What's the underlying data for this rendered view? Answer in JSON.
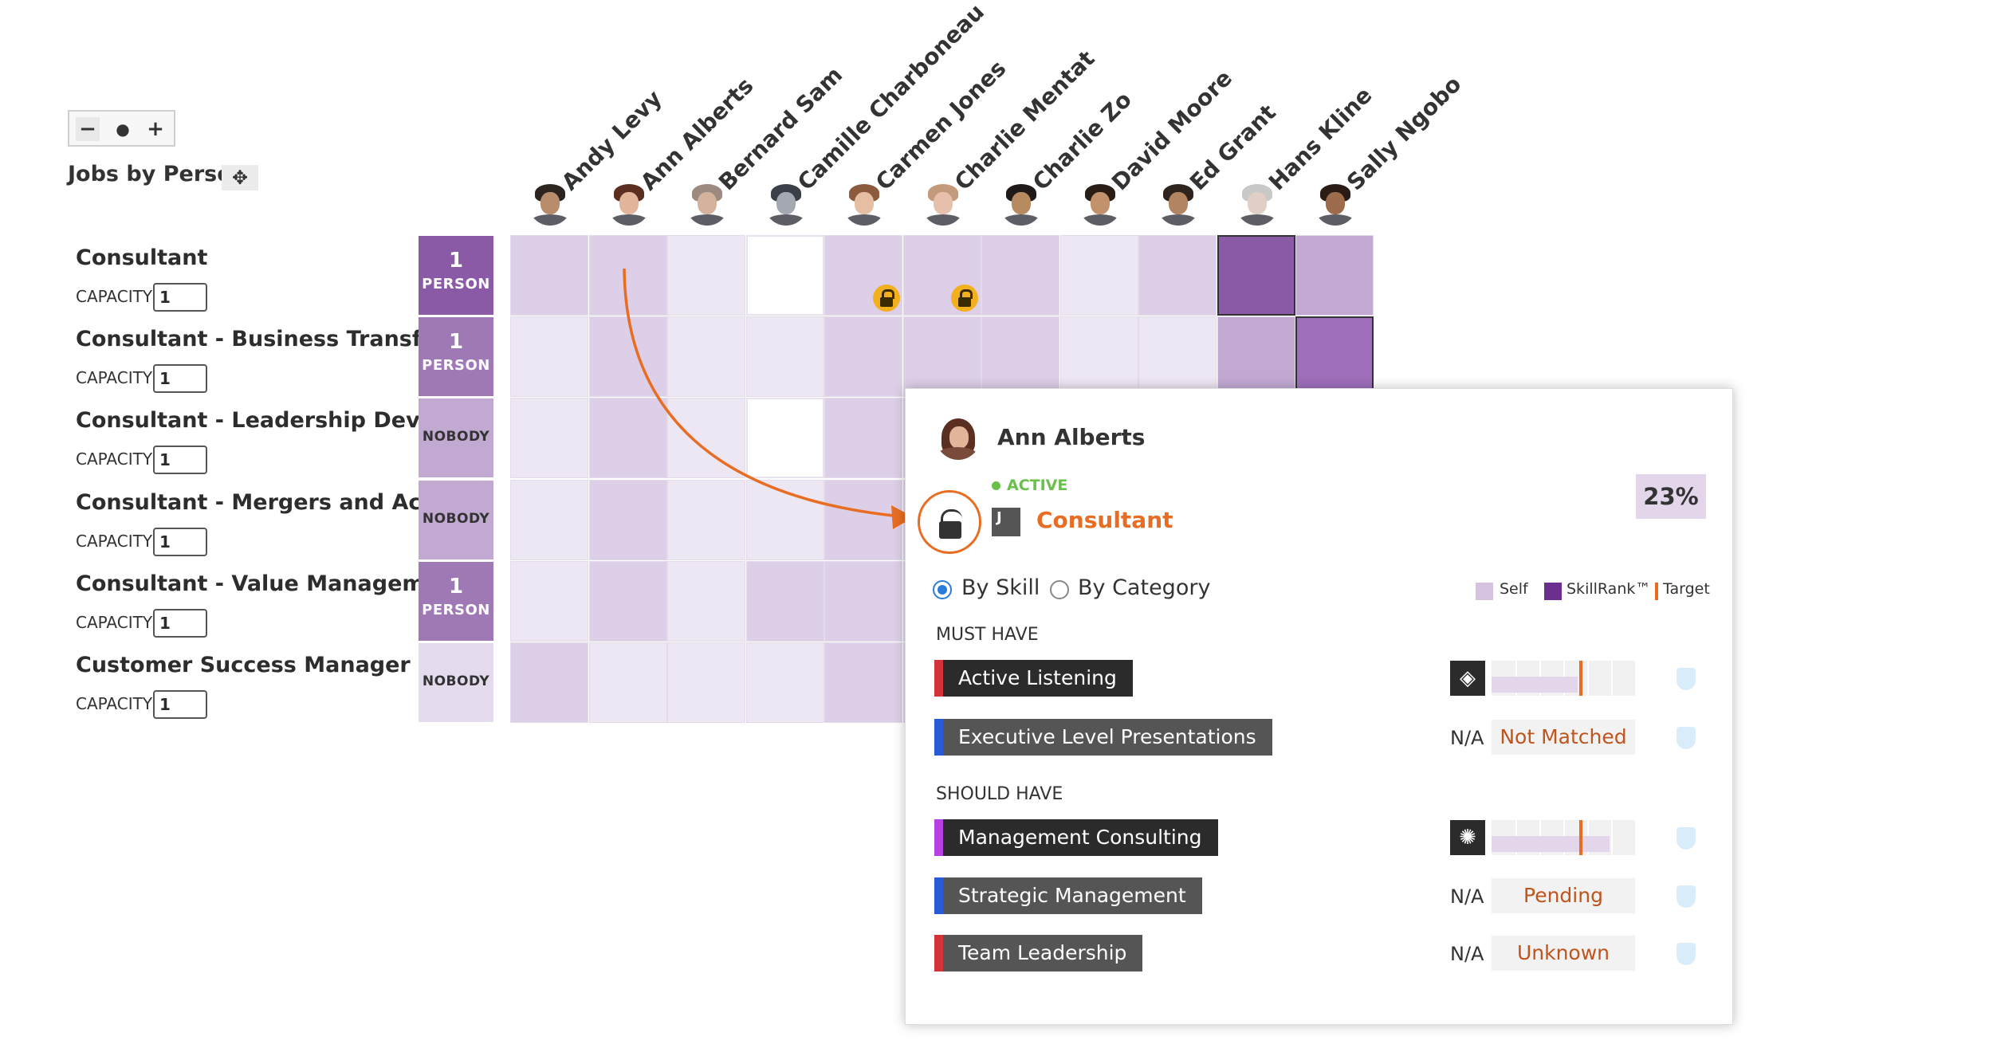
{
  "zoom": {
    "minus": "−",
    "dot": "●",
    "plus": "+"
  },
  "title": "Jobs by Person",
  "move_icon": "✥",
  "people": [
    {
      "name": "Andy Levy",
      "skin": "#b98c6c",
      "hair": "#2d2420"
    },
    {
      "name": "Ann Alberts",
      "skin": "#e2b59a",
      "hair": "#5a2f22"
    },
    {
      "name": "Bernard Sam",
      "skin": "#d4b29c",
      "hair": "#9c8a80"
    },
    {
      "name": "Camille Charboneau",
      "skin": "#a4a8b0",
      "hair": "#3a3f48"
    },
    {
      "name": "Carmen Jones",
      "skin": "#e6bea4",
      "hair": "#8c5a3c"
    },
    {
      "name": "Charlie Mentat",
      "skin": "#e6c0ac",
      "hair": "#c49a7c"
    },
    {
      "name": "Charlie Zo",
      "skin": "#b88a60",
      "hair": "#1f1a17"
    },
    {
      "name": "David Moore",
      "skin": "#c2926c",
      "hair": "#2a1d16"
    },
    {
      "name": "Ed Grant",
      "skin": "#b28462",
      "hair": "#2e241d"
    },
    {
      "name": "Hans Kline",
      "skin": "#e0cfc6",
      "hair": "#c8c8c8"
    },
    {
      "name": "Sally Ngobo",
      "skin": "#9c6c4c",
      "hair": "#2a1c14"
    }
  ],
  "capacity_label": "CAPACITY",
  "jobs": [
    {
      "name": "Consultant",
      "capacity": "1",
      "badge_num": "1",
      "badge_label": "PERSON",
      "badge_color": "#8b5aa6"
    },
    {
      "name": "Consultant - Business Transfor...",
      "capacity": "1",
      "badge_num": "1",
      "badge_label": "PERSON",
      "badge_color": "#9f79b6"
    },
    {
      "name": "Consultant - Leadership Devel...",
      "capacity": "1",
      "badge_num": "",
      "badge_label": "NOBODY",
      "badge_color": "#c2a9d2"
    },
    {
      "name": "Consultant - Mergers and Acqu...",
      "capacity": "1",
      "badge_num": "",
      "badge_label": "NOBODY",
      "badge_color": "#c2a9d2"
    },
    {
      "name": "Consultant - Value Manageme...",
      "capacity": "1",
      "badge_num": "1",
      "badge_label": "PERSON",
      "badge_color": "#9f79b6"
    },
    {
      "name": "Customer Success Manager",
      "capacity": "1",
      "badge_num": "",
      "badge_label": "NOBODY",
      "badge_color": "#e5dbee"
    }
  ],
  "grid_colors": [
    [
      "#ddcfe7",
      "#ddcfe7",
      "#ede6f3",
      "#ffffff",
      "#ddcfe7",
      "#ddcfe7",
      "#ddcfe7",
      "#ede6f3",
      "#ddcfe7",
      "#8b5aa6",
      "#c2a9d2"
    ],
    [
      "#ede6f3",
      "#ddcfe7",
      "#ede6f3",
      "#ede6f3",
      "#ddcfe7",
      "#ddcfe7",
      "#ddcfe7",
      "#ede6f3",
      "#ede6f3",
      "#c2a9d2",
      "#9f6fbb"
    ],
    [
      "#ede6f3",
      "#ddcfe7",
      "#ede6f3",
      "#ffffff",
      "#ddcfe7",
      "#ddcfe7",
      "#ddcfe7",
      "#ede6f3",
      "#ede6f3",
      "#ddcfe7",
      "#ddcfe7"
    ],
    [
      "#ede6f3",
      "#ddcfe7",
      "#ede6f3",
      "#ede6f3",
      "#ddcfe7",
      "#ddcfe7",
      "#ddcfe7",
      "#ede6f3",
      "#ede6f3",
      "#ddcfe7",
      "#ddcfe7"
    ],
    [
      "#ede6f3",
      "#ddcfe7",
      "#ede6f3",
      "#ddcfe7",
      "#ddcfe7",
      "#ddcfe7",
      "#ddcfe7",
      "#ede6f3",
      "#ede6f3",
      "#ddcfe7",
      "#ddcfe7"
    ],
    [
      "#ddcfe7",
      "#ede6f3",
      "#ede6f3",
      "#ede6f3",
      "#ddcfe7",
      "#ddcfe7",
      "#ddcfe7",
      "#ede6f3",
      "#ede6f3",
      "#ddcfe7",
      "#ddcfe7"
    ]
  ],
  "popup": {
    "name": "Ann Alberts",
    "status": "ACTIVE",
    "job_icon": "J",
    "job": "Consultant",
    "percent": "23%",
    "radio_skill": "By Skill",
    "radio_category": "By Category",
    "legend": {
      "self": "Self",
      "skillrank": "SkillRank™",
      "target": "Target"
    },
    "must_have_label": "MUST HAVE",
    "should_have_label": "SHOULD HAVE",
    "must_have": [
      {
        "name": "Active Listening",
        "bar": "#d0343a",
        "bg": "#2b2b2b",
        "type": "meter",
        "icon": "◈",
        "fill": 0.6
      },
      {
        "name": "Executive Level Presentations",
        "bar": "#2a5bd6",
        "bg": "#555555",
        "type": "text",
        "na": "N/A",
        "result": "Not Matched"
      }
    ],
    "should_have": [
      {
        "name": "Management Consulting",
        "bar": "#b641e0",
        "bg": "#2b2b2b",
        "type": "meter",
        "icon": "✺",
        "fill": 0.82
      },
      {
        "name": "Strategic Management",
        "bar": "#2a5bd6",
        "bg": "#555555",
        "type": "text",
        "na": "N/A",
        "result": "Pending"
      },
      {
        "name": "Team Leadership",
        "bar": "#d0343a",
        "bg": "#555555",
        "type": "text",
        "na": "N/A",
        "result": "Unknown"
      }
    ]
  },
  "colors": {
    "accent": "#e86d22",
    "active": "#6ac04a",
    "purple_dark": "#6b2f8f",
    "self": "#d4c2e0"
  }
}
